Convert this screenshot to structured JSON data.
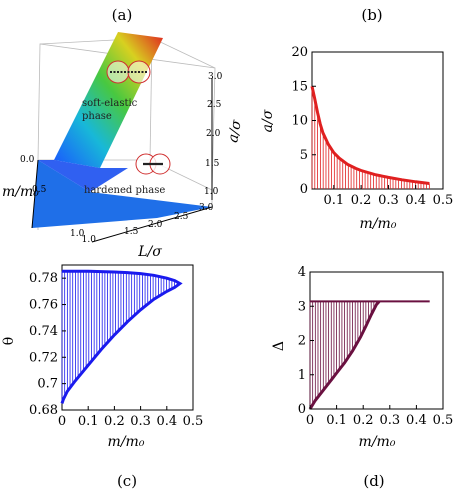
{
  "panel_labels": [
    "(a)",
    "(b)",
    "(c)",
    "(d)"
  ],
  "panel_a": {
    "xlabel": "L/σ",
    "ylabel": "m/m₀",
    "zlabel": "a/σ",
    "x_ticks": [
      "1.0",
      "1.5",
      "2.0",
      "2.5",
      "3.0"
    ],
    "y_ticks": [
      "0.0",
      "0.5",
      "1.0"
    ],
    "z_ticks": [
      "1.0",
      "1.5",
      "2.0",
      "2.5",
      "3.0"
    ],
    "phase_soft": [
      "soft-elastic",
      "phase"
    ],
    "phase_hard": "hardened phase",
    "colors": {
      "hardened": "#1f6fe8",
      "surface_low": "#1a55ff",
      "surface_high": "#e02020"
    }
  },
  "chart_data": [
    {
      "panel": "b",
      "type": "line",
      "xlabel": "m/m₀",
      "ylabel": "a/σ",
      "xlim": [
        0.02,
        0.5
      ],
      "ylim": [
        0,
        20
      ],
      "x_ticks": [
        "0.1",
        "0.2",
        "0.3",
        "0.4",
        "0.5"
      ],
      "y_ticks": [
        "0",
        "5",
        "10",
        "15",
        "20"
      ],
      "color": "#e02020",
      "x": [
        0.02,
        0.03,
        0.04,
        0.05,
        0.06,
        0.08,
        0.1,
        0.12,
        0.15,
        0.18,
        0.2,
        0.25,
        0.3,
        0.35,
        0.4,
        0.45
      ],
      "y": [
        15.0,
        13.2,
        11.2,
        9.5,
        8.2,
        6.5,
        5.3,
        4.5,
        3.6,
        3.0,
        2.7,
        2.1,
        1.7,
        1.35,
        1.05,
        0.8
      ]
    },
    {
      "panel": "c",
      "type": "line",
      "xlabel": "m/m₀",
      "ylabel": "θ",
      "xlim": [
        0,
        0.5
      ],
      "ylim": [
        0.68,
        0.79
      ],
      "x_ticks": [
        "0",
        "0.1",
        "0.2",
        "0.3",
        "0.4",
        "0.5"
      ],
      "y_ticks": [
        "0.68",
        "0.7",
        "0.72",
        "0.74",
        "0.76",
        "0.78"
      ],
      "color": "#1a1aee",
      "upper": {
        "x": [
          0.0,
          0.05,
          0.1,
          0.15,
          0.2,
          0.25,
          0.3,
          0.35,
          0.4,
          0.43,
          0.45
        ],
        "y": [
          0.7853,
          0.7853,
          0.7852,
          0.785,
          0.7847,
          0.7842,
          0.7835,
          0.7822,
          0.78,
          0.7782,
          0.776
        ]
      },
      "lower": {
        "x": [
          0.0,
          0.005,
          0.02,
          0.05,
          0.1,
          0.15,
          0.2,
          0.25,
          0.3,
          0.35,
          0.4,
          0.43,
          0.45
        ],
        "y": [
          0.685,
          0.688,
          0.694,
          0.702,
          0.714,
          0.726,
          0.737,
          0.747,
          0.756,
          0.764,
          0.77,
          0.773,
          0.776
        ]
      }
    },
    {
      "panel": "d",
      "type": "line",
      "xlabel": "m/m₀",
      "ylabel": "Δ",
      "xlim": [
        0,
        0.5
      ],
      "ylim": [
        0,
        4
      ],
      "x_ticks": [
        "0",
        "0.1",
        "0.2",
        "0.3",
        "0.4",
        "0.5"
      ],
      "y_ticks": [
        "0",
        "1",
        "2",
        "3",
        "4"
      ],
      "color": "#6a1040",
      "plateau": {
        "y": 3.1416,
        "x": [
          0.0,
          0.45
        ]
      },
      "curve": {
        "x": [
          0.0,
          0.02,
          0.05,
          0.08,
          0.1,
          0.13,
          0.16,
          0.19,
          0.21,
          0.23,
          0.25,
          0.26
        ],
        "y": [
          0.0,
          0.25,
          0.55,
          0.85,
          1.05,
          1.35,
          1.7,
          2.1,
          2.42,
          2.75,
          3.05,
          3.14
        ]
      }
    }
  ]
}
